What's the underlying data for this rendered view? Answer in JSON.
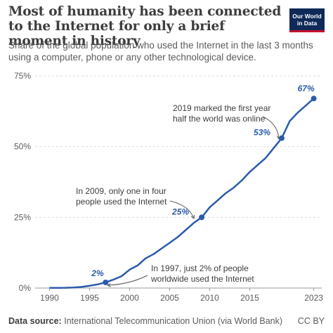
{
  "header": {
    "title": "Most of humanity has been connected to the Internet for only a brief moment in history",
    "subtitle": "Share of the global population who used the Internet in the last 3 months using a computer, phone or any other technological device.",
    "logo_line1": "Our World",
    "logo_line2": "in Data"
  },
  "footer": {
    "source_label": "Data source:",
    "source_text": "International Telecommunication Union (via World Bank)",
    "license": "CC BY"
  },
  "colors": {
    "line": "#2a5bab",
    "text": "#3d3d3d",
    "grid": "#dddddd",
    "logo_bg": "#0f2a58",
    "logo_accent": "#c8102e"
  },
  "chart_data": {
    "type": "line",
    "title": "Most of humanity has been connected to the Internet for only a brief moment in history",
    "x": [
      1990,
      1991,
      1992,
      1993,
      1994,
      1995,
      1996,
      1997,
      1998,
      1999,
      2000,
      2001,
      2002,
      2003,
      2004,
      2005,
      2006,
      2007,
      2008,
      2009,
      2010,
      2011,
      2012,
      2013,
      2014,
      2015,
      2016,
      2017,
      2018,
      2019,
      2020,
      2021,
      2022,
      2023
    ],
    "series": [
      {
        "values": [
          0.05,
          0.07,
          0.1,
          0.2,
          0.4,
          0.8,
          1.3,
          2,
          3,
          4.2,
          6.5,
          8,
          10.5,
          12,
          14,
          16,
          18,
          20.5,
          23,
          25,
          28.5,
          31,
          33.5,
          35.5,
          38,
          41,
          43.5,
          46,
          49.5,
          53,
          59,
          62,
          64.5,
          67
        ]
      }
    ],
    "xlim": [
      1988.2,
      2024
    ],
    "ylim": [
      0,
      75
    ],
    "y_ticks": [
      0,
      25,
      50,
      75
    ],
    "y_tick_labels": [
      "0%",
      "25%",
      "50%",
      "75%"
    ],
    "x_ticks": [
      1990,
      1995,
      2000,
      2005,
      2010,
      2015,
      2023
    ],
    "grid": true,
    "highlights": [
      {
        "x": 1997,
        "y": 2,
        "label": "2%"
      },
      {
        "x": 2009,
        "y": 25,
        "label": "25%"
      },
      {
        "x": 2019,
        "y": 53,
        "label": "53%"
      },
      {
        "x": 2023,
        "y": 67,
        "label": "67%"
      }
    ],
    "annotations": [
      {
        "lines": [
          "In 1997, just 2% of people",
          "worldwide used the Internet"
        ]
      },
      {
        "lines": [
          "In 2009, only one in four",
          "people used the Internet"
        ]
      },
      {
        "lines": [
          "2019 marked the first year",
          "half the world was online"
        ]
      }
    ]
  }
}
